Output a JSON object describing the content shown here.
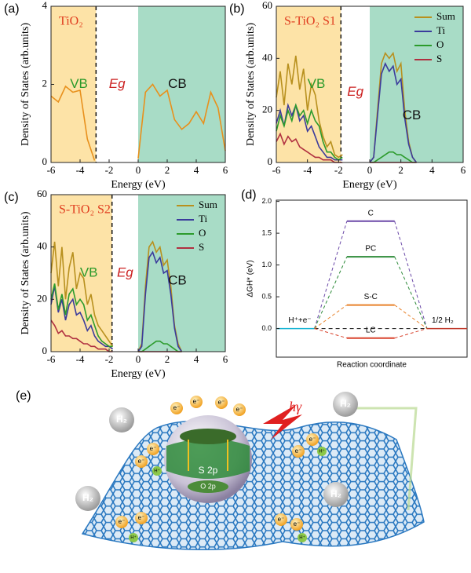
{
  "chart_data": [
    {
      "type": "dos",
      "panel_label": "(a)",
      "title": "TiO₂",
      "xlabel": "Energy (eV)",
      "ylabel": "Density of States (arb.units)",
      "xlim": [
        -6,
        6
      ],
      "xticks": [
        -6,
        -4,
        -2,
        0,
        2,
        4,
        6
      ],
      "ylim": [
        0,
        4
      ],
      "yticks": [
        0,
        2,
        4
      ],
      "regions": [
        {
          "name": "VB",
          "from": -6,
          "to": -2.9,
          "color": "#fde3a7",
          "label_color": "#2a9a2a"
        },
        {
          "name": "CB",
          "from": 0,
          "to": 6,
          "color": "#a8dcc6",
          "label_color": "#111111"
        }
      ],
      "gap_label": "Eg",
      "x": [
        -6,
        -5.5,
        -5,
        -4.5,
        -4,
        -3.5,
        -3,
        -2.5,
        -2,
        -1.5,
        -1,
        -0.5,
        0,
        0.5,
        1,
        1.5,
        2,
        2.5,
        3,
        3.5,
        4,
        4.5,
        5,
        5.5,
        6
      ],
      "series": [
        {
          "color": "#e8901c",
          "values": [
            1.7,
            1.55,
            1.95,
            1.8,
            1.85,
            0.6,
            0.05,
            null,
            null,
            null,
            null,
            null,
            0.1,
            1.8,
            2.0,
            1.7,
            1.85,
            1.1,
            0.85,
            1.0,
            1.3,
            1.0,
            1.8,
            1.4,
            0.3
          ]
        }
      ]
    },
    {
      "type": "dos",
      "panel_label": "(b)",
      "title": "S-TiO₂ S1",
      "xlabel": "Energy (eV)",
      "ylabel": "Density of States (arb.units)",
      "xlim": [
        -6,
        6
      ],
      "xticks": [
        -6,
        -4,
        -2,
        0,
        2,
        4,
        6
      ],
      "ylim": [
        0,
        60
      ],
      "yticks": [
        0,
        20,
        40,
        60
      ],
      "regions": [
        {
          "name": "VB",
          "from": -6,
          "to": -1.85,
          "color": "#fde3a7",
          "label_color": "#2a9a2a"
        },
        {
          "name": "CB",
          "from": 0,
          "to": 6,
          "color": "#a8dcc6",
          "label_color": "#111111"
        }
      ],
      "gap_label": "Eg",
      "legend": "upper right",
      "x": [
        -6,
        -5.75,
        -5.5,
        -5.25,
        -5,
        -4.75,
        -4.5,
        -4.25,
        -4,
        -3.75,
        -3.5,
        -3.25,
        -3,
        -2.75,
        -2.5,
        -2.25,
        -2,
        -1.75,
        -1,
        0,
        0.25,
        0.5,
        0.75,
        1,
        1.25,
        1.5,
        1.75,
        2,
        2.25,
        2.5,
        2.75,
        3
      ],
      "series": [
        {
          "name": "Sum",
          "color": "#b8901e",
          "values": [
            25,
            35,
            22,
            38,
            30,
            41,
            28,
            36,
            20,
            30,
            26,
            16,
            10,
            6,
            8,
            3,
            2,
            3,
            null,
            0,
            2,
            20,
            38,
            42,
            40,
            42,
            35,
            38,
            20,
            8,
            2,
            0
          ]
        },
        {
          "name": "Ti",
          "color": "#3b3b9c",
          "values": [
            15,
            20,
            14,
            22,
            18,
            22,
            16,
            18,
            12,
            14,
            10,
            6,
            4,
            2,
            2,
            1,
            1,
            1,
            null,
            0,
            2,
            18,
            34,
            38,
            35,
            37,
            30,
            32,
            17,
            7,
            2,
            0
          ]
        },
        {
          "name": "O",
          "color": "#2c9b2c",
          "values": [
            12,
            18,
            14,
            20,
            16,
            22,
            18,
            20,
            15,
            20,
            16,
            14,
            8,
            4,
            4,
            2,
            1,
            2,
            null,
            0,
            0,
            1,
            2,
            3,
            4,
            4,
            3,
            3,
            2,
            1,
            0,
            0
          ]
        },
        {
          "name": "S",
          "color": "#b03040",
          "values": [
            8,
            11,
            7,
            10,
            8,
            9,
            6,
            5,
            4,
            3,
            2,
            2,
            1,
            1,
            1,
            0,
            0,
            0,
            null,
            0,
            0,
            0,
            0,
            0,
            0,
            0,
            0,
            0,
            0,
            0,
            0,
            0
          ]
        }
      ]
    },
    {
      "type": "dos",
      "panel_label": "(c)",
      "title": "S-TiO₂ S2",
      "xlabel": "Energy (eV)",
      "ylabel": "Density of States (arb.units)",
      "xlim": [
        -6,
        6
      ],
      "xticks": [
        -6,
        -4,
        -2,
        0,
        2,
        4,
        6
      ],
      "ylim": [
        0,
        60
      ],
      "yticks": [
        0,
        20,
        40,
        60
      ],
      "regions": [
        {
          "name": "VB",
          "from": -6,
          "to": -1.8,
          "color": "#fde3a7",
          "label_color": "#2a9a2a"
        },
        {
          "name": "CB",
          "from": 0,
          "to": 6,
          "color": "#a8dcc6",
          "label_color": "#111111"
        }
      ],
      "gap_label": "Eg",
      "legend": "upper right",
      "x": [
        -6,
        -5.75,
        -5.5,
        -5.25,
        -5,
        -4.75,
        -4.5,
        -4.25,
        -4,
        -3.75,
        -3.5,
        -3.25,
        -3,
        -2.75,
        -2.5,
        -2.25,
        -2,
        -1.75,
        -1,
        0,
        0.25,
        0.5,
        0.75,
        1,
        1.25,
        1.5,
        1.75,
        2,
        2.25,
        2.5,
        2.75,
        3
      ],
      "series": [
        {
          "name": "Sum",
          "color": "#b8901e",
          "values": [
            30,
            42,
            25,
            40,
            20,
            32,
            38,
            24,
            30,
            28,
            18,
            22,
            14,
            10,
            8,
            6,
            4,
            2,
            null,
            0,
            3,
            25,
            40,
            42,
            38,
            40,
            33,
            35,
            25,
            10,
            3,
            0
          ]
        },
        {
          "name": "Ti",
          "color": "#3b3b9c",
          "values": [
            18,
            25,
            15,
            20,
            12,
            18,
            20,
            14,
            15,
            12,
            8,
            10,
            6,
            4,
            3,
            2,
            2,
            1,
            null,
            0,
            2,
            22,
            36,
            38,
            34,
            36,
            30,
            31,
            22,
            9,
            2,
            0
          ]
        },
        {
          "name": "O",
          "color": "#2c9b2c",
          "values": [
            20,
            26,
            16,
            22,
            14,
            22,
            24,
            18,
            20,
            18,
            12,
            14,
            10,
            6,
            4,
            3,
            2,
            2,
            null,
            0,
            0,
            1,
            2,
            3,
            4,
            4,
            3,
            3,
            2,
            1,
            0,
            0
          ]
        },
        {
          "name": "S",
          "color": "#b03040",
          "values": [
            12,
            10,
            7,
            8,
            6,
            6,
            5,
            5,
            4,
            3,
            3,
            2,
            2,
            1,
            1,
            1,
            0,
            0,
            null,
            0,
            0,
            0,
            0,
            0,
            0,
            0,
            0,
            0,
            0,
            0,
            0,
            0
          ]
        }
      ]
    },
    {
      "type": "energy_profile",
      "panel_label": "(d)",
      "xlabel": "Reaction coordinate",
      "ylabel": "ΔGH* (eV)",
      "ylim": [
        -0.45,
        2.02
      ],
      "yticks": [
        {
          "value": 0,
          "label": "0.0"
        },
        0.5,
        {
          "value": 1,
          "label": "1.0"
        },
        1.5,
        {
          "value": 2,
          "label": "2.0"
        }
      ],
      "reference": {
        "value": 0,
        "start_label": "H⁺+e⁻",
        "end_label": "1/2 H₂",
        "start_color": "#19b5d4",
        "end_color": "#c0392b"
      },
      "series": [
        {
          "name": "C",
          "color": "#6b49a8",
          "value": 1.69
        },
        {
          "name": "PC",
          "color": "#2e8b3a",
          "value": 1.13
        },
        {
          "name": "S-C",
          "color": "#e8822a",
          "value": 0.37
        },
        {
          "name": "LC",
          "color": "#d9442e",
          "value": -0.15
        }
      ]
    }
  ],
  "illustration": {
    "panel_label": "(e)",
    "h2": [
      "H₂",
      "H₂",
      "H₂",
      "H₂"
    ],
    "photon": "hγ",
    "s2p": "S 2p",
    "o2p": "O 2p",
    "electron": "e⁻",
    "proton": "H⁺"
  }
}
